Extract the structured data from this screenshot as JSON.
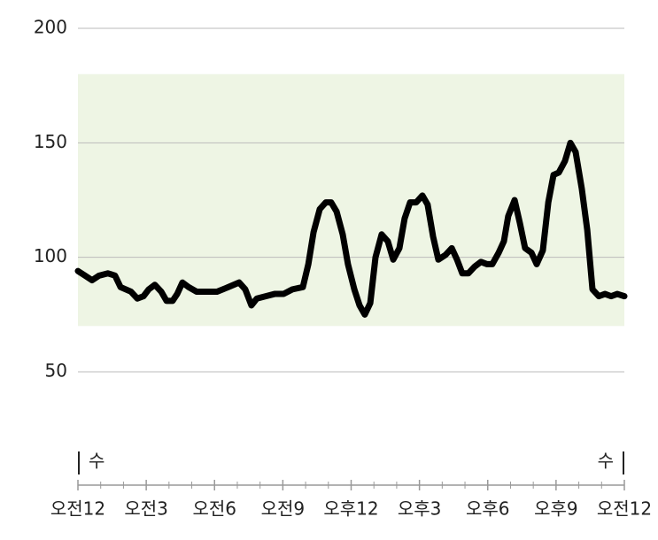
{
  "chart_data": {
    "type": "line",
    "x": [
      0,
      0.31,
      0.62,
      0.93,
      1.32,
      1.63,
      1.87,
      2.33,
      2.61,
      2.88,
      3.11,
      3.38,
      3.66,
      3.89,
      4.16,
      4.36,
      4.59,
      4.86,
      5.21,
      5.6,
      6.11,
      6.61,
      7.08,
      7.35,
      7.62,
      7.86,
      8.25,
      8.64,
      9.03,
      9.42,
      9.88,
      10.12,
      10.35,
      10.62,
      10.89,
      11.12,
      11.36,
      11.63,
      11.86,
      12.14,
      12.37,
      12.6,
      12.84,
      13.07,
      13.34,
      13.61,
      13.85,
      14.12,
      14.35,
      14.59,
      14.86,
      15.13,
      15.36,
      15.6,
      15.83,
      16.14,
      16.42,
      16.65,
      16.88,
      17.15,
      17.43,
      17.7,
      17.97,
      18.2,
      18.48,
      18.71,
      18.9,
      19.18,
      19.41,
      19.64,
      19.92,
      20.15,
      20.42,
      20.66,
      20.89,
      21.12,
      21.39,
      21.63,
      21.86,
      22.13,
      22.37,
      22.6,
      22.88,
      23.15,
      23.42,
      23.69,
      24
    ],
    "series": [
      {
        "color": "#000000",
        "values": [
          94,
          92,
          90,
          92,
          93,
          92,
          87,
          85,
          82,
          83,
          86,
          88,
          85,
          81,
          81,
          84,
          89,
          87,
          85,
          85,
          85,
          87,
          89,
          86,
          79,
          82,
          83,
          84,
          84,
          86,
          87,
          97,
          111,
          121,
          124,
          124,
          120,
          110,
          97,
          86,
          79,
          75,
          80,
          100,
          110,
          107,
          99,
          104,
          117,
          124,
          124,
          127,
          123,
          109,
          99,
          101,
          104,
          99,
          93,
          93,
          96,
          98,
          97,
          97,
          102,
          107,
          118,
          125,
          115,
          104,
          102,
          97,
          103,
          124,
          136,
          137,
          142,
          150,
          146,
          130,
          112,
          86,
          83,
          84,
          83,
          84,
          83
        ]
      }
    ],
    "xlim": [
      0,
      24
    ],
    "xticks": [
      {
        "value": 0,
        "label": "오전12"
      },
      {
        "value": 3,
        "label": "오전3"
      },
      {
        "value": 6,
        "label": "오전6"
      },
      {
        "value": 9,
        "label": "오전9"
      },
      {
        "value": 12,
        "label": "오후12"
      },
      {
        "value": 15,
        "label": "오후3"
      },
      {
        "value": 18,
        "label": "오후6"
      },
      {
        "value": 21,
        "label": "오후9"
      },
      {
        "value": 24,
        "label": "오전12"
      }
    ],
    "xminorticks": [
      1,
      2,
      4,
      5,
      7,
      8,
      10,
      11,
      13,
      14,
      16,
      17,
      19,
      20,
      22,
      23
    ],
    "ylim": [
      50,
      200
    ],
    "yticks": [
      50,
      100,
      150,
      200
    ],
    "grid": true,
    "band": {
      "from": 70,
      "to": 180,
      "color": "#eef5e4"
    },
    "day_start_label": "수",
    "day_end_label": "수"
  }
}
